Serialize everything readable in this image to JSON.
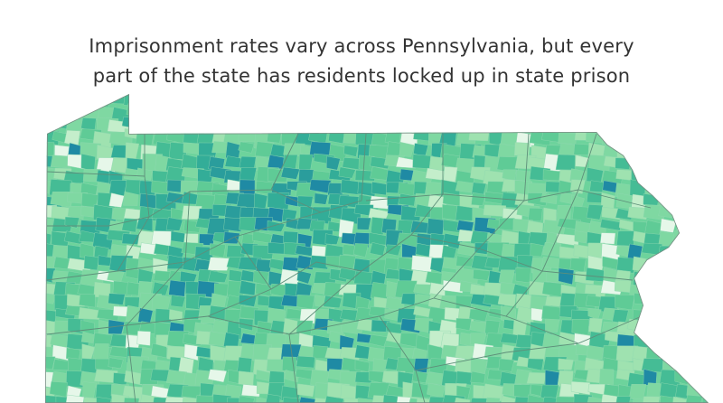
{
  "title_lines": [
    "Imprisonment rates vary across Pennsylvania, but every",
    "part of the state has residents locked up in state prison"
  ]
}
